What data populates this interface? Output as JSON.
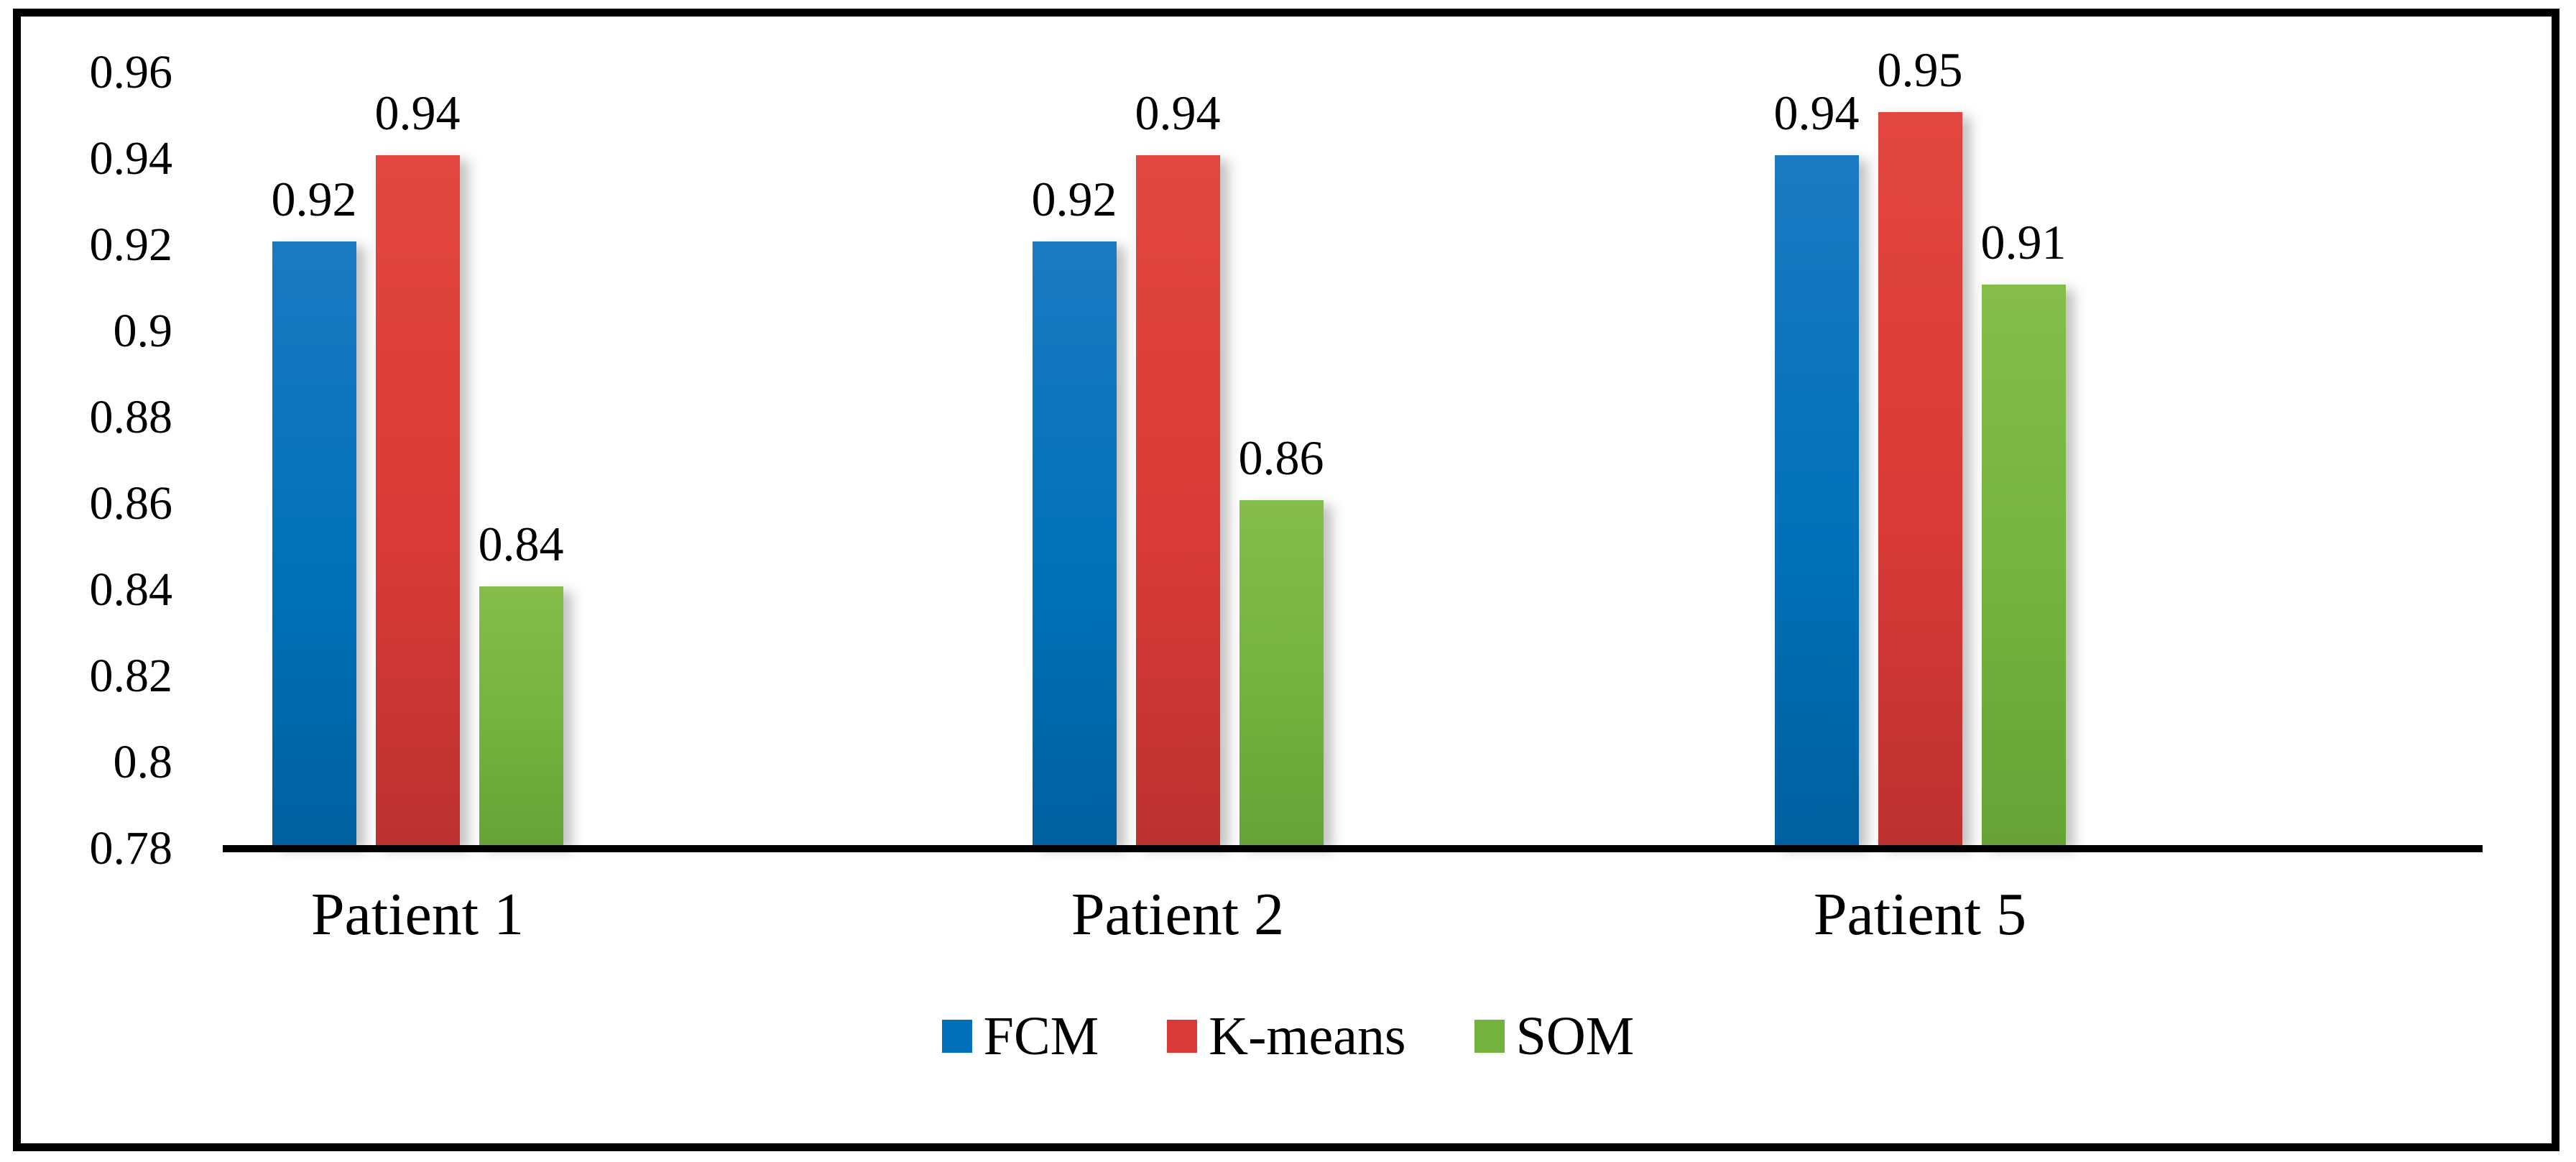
{
  "figure": {
    "background_color": "#ffffff",
    "frame_color": "#000000",
    "text_color": "#000000"
  },
  "chart_data": {
    "type": "bar",
    "title": "",
    "xlabel": "",
    "ylabel": "",
    "grid": false,
    "categories": [
      "Patient 1",
      "Patient 2",
      "Patient 5"
    ],
    "series": [
      {
        "name": "FCM",
        "color": "#0071b8",
        "color_top": "#1b7ac2",
        "color_bottom": "#00609f",
        "values": [
          0.92,
          0.92,
          0.94
        ],
        "display_values": [
          "0.92",
          "0.92",
          "0.94"
        ]
      },
      {
        "name": "K-means",
        "color": "#d93a37",
        "color_top": "#e2473f",
        "color_bottom": "#bc3231",
        "values": [
          0.94,
          0.94,
          0.95
        ],
        "display_values": [
          "0.94",
          "0.94",
          "0.95"
        ]
      },
      {
        "name": "SOM",
        "color": "#74b23e",
        "color_top": "#86bd4a",
        "color_bottom": "#67a237",
        "values": [
          0.84,
          0.86,
          0.91
        ],
        "display_values": [
          "0.84",
          "0.86",
          "0.91"
        ]
      }
    ],
    "y_axis": {
      "min": 0.78,
      "max": 0.96,
      "step": 0.02,
      "tick_labels": [
        "0.78",
        "0.8",
        "0.82",
        "0.84",
        "0.86",
        "0.88",
        "0.9",
        "0.92",
        "0.94",
        "0.96"
      ]
    },
    "legend": {
      "position": "bottom",
      "entries": [
        "FCM",
        "K-means",
        "SOM"
      ]
    },
    "data_labels_visible": true
  }
}
